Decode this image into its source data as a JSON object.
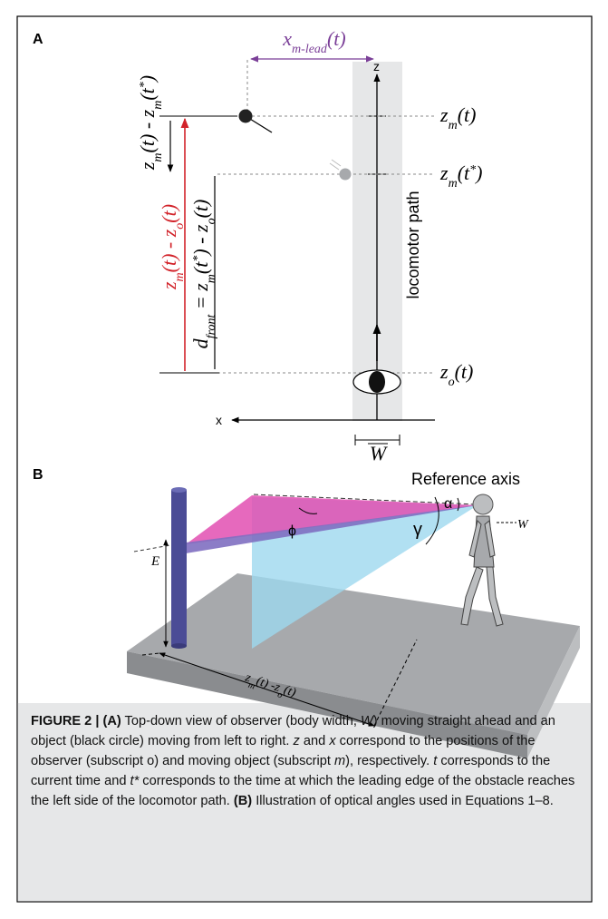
{
  "panel_a": {
    "label": "A",
    "x_lead": [
      "x",
      "m-lead",
      "(t)"
    ],
    "z_axis": "z",
    "x_axis": "x",
    "w": "W",
    "zm_t": [
      "z",
      "m",
      "(t)"
    ],
    "zm_tstar": [
      "z",
      "m",
      "(t",
      "*",
      ")"
    ],
    "zo_t": [
      "z",
      "o",
      "(t)"
    ],
    "locomotor_path": "locomotor path",
    "diff_m": [
      "z",
      "m",
      "(t) - z",
      "m",
      "(t",
      "*",
      ")"
    ],
    "diff_o": [
      "z",
      "m",
      "(t) - z",
      "o",
      "(t)"
    ],
    "d_front": [
      "d",
      "front",
      " = z",
      "m",
      "(t",
      "*",
      ") - z",
      "o",
      "(t)"
    ]
  },
  "panel_b": {
    "label": "B",
    "reference_axis": "Reference axis",
    "alpha": "α",
    "gamma": "γ",
    "phi": "ϕ",
    "w": "W",
    "e": "E",
    "distance": [
      "z",
      "m",
      "(t) -z",
      "o",
      "(t)"
    ]
  },
  "caption": [
    "FIGURE 2 | (A)",
    " Top-down view of observer (body width, ",
    "W",
    ") moving straight ahead and an object (black circle) moving from left to right. ",
    "z",
    " and ",
    "x",
    " correspond to the positions of the observer (subscript o) and moving object (subscript ",
    "m",
    "), respectively. ",
    "t",
    " corresponds to the current time and ",
    "t*",
    " corresponds to the time at which the leading edge of the obstacle reaches the left side of the locomotor path. ",
    "(B)",
    " Illustration of optical angles used in Equations 1–8."
  ]
}
